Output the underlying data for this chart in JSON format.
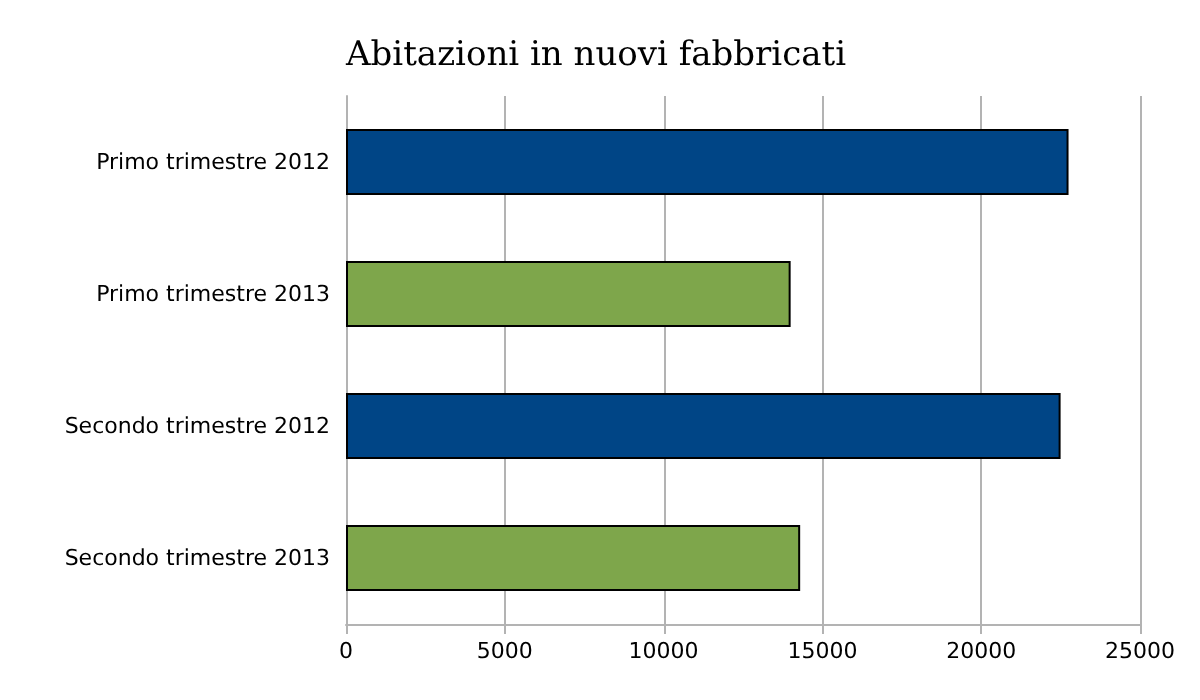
{
  "chart_data": {
    "type": "bar",
    "title": "Abitazioni in nuovi fabbricati",
    "orientation": "horizontal",
    "categories": [
      "Primo trimestre 2012",
      "Primo trimestre 2013",
      "Secondo trimestre 2012",
      "Secondo trimestre 2013"
    ],
    "values": [
      22750,
      14000,
      22500,
      14300
    ],
    "colors": [
      "#004586",
      "#7ea64b",
      "#004586",
      "#7ea64b"
    ],
    "xlim": [
      0,
      25000
    ],
    "xticks": [
      0,
      5000,
      10000,
      15000,
      20000,
      25000
    ],
    "grid": "x"
  }
}
